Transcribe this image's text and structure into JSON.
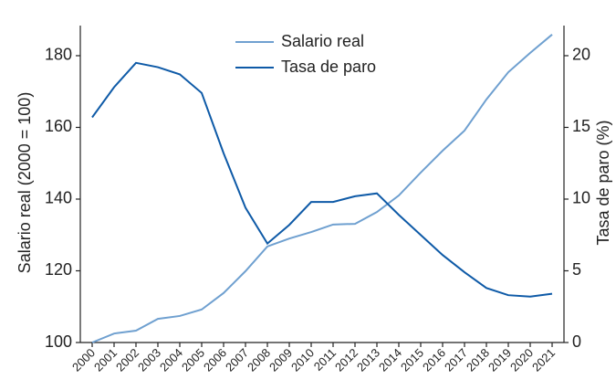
{
  "chart_data": {
    "type": "line",
    "categories": [
      "2000",
      "2001",
      "2002",
      "2003",
      "2004",
      "2005",
      "2006",
      "2007",
      "2008",
      "2009",
      "2010",
      "2011",
      "2012",
      "2013",
      "2014",
      "2015",
      "2016",
      "2017",
      "2018",
      "2019",
      "2020",
      "2021"
    ],
    "series": [
      {
        "name": "Salario real",
        "color": "#6fa0d0",
        "values": [
          100,
          102.5,
          103.3,
          106.6,
          107.4,
          109.2,
          113.8,
          119.9,
          126.8,
          129.0,
          130.8,
          132.9,
          133.1,
          136.4,
          141.0,
          147.4,
          153.5,
          159.1,
          167.8,
          175.4,
          180.8,
          185.9
        ]
      },
      {
        "name": "Tasa de paro",
        "color": "#0e5aa7",
        "axis": "y2",
        "values": [
          15.7,
          17.8,
          19.5,
          19.2,
          18.7,
          17.4,
          13.2,
          9.4,
          6.9,
          8.2,
          9.8,
          9.8,
          10.2,
          10.4,
          8.9,
          7.5,
          6.1,
          4.9,
          3.8,
          3.3,
          3.2,
          3.4
        ]
      }
    ],
    "ylabel": "Salario real (2000 = 100)",
    "y2label": "Tasa de paro (%)",
    "ylim": [
      100,
      188.4
    ],
    "yticks": [
      100,
      120,
      140,
      160,
      180
    ],
    "y2lim": [
      0,
      22.1
    ],
    "y2ticks": [
      0,
      5,
      10,
      15,
      20
    ],
    "legend": "top"
  }
}
